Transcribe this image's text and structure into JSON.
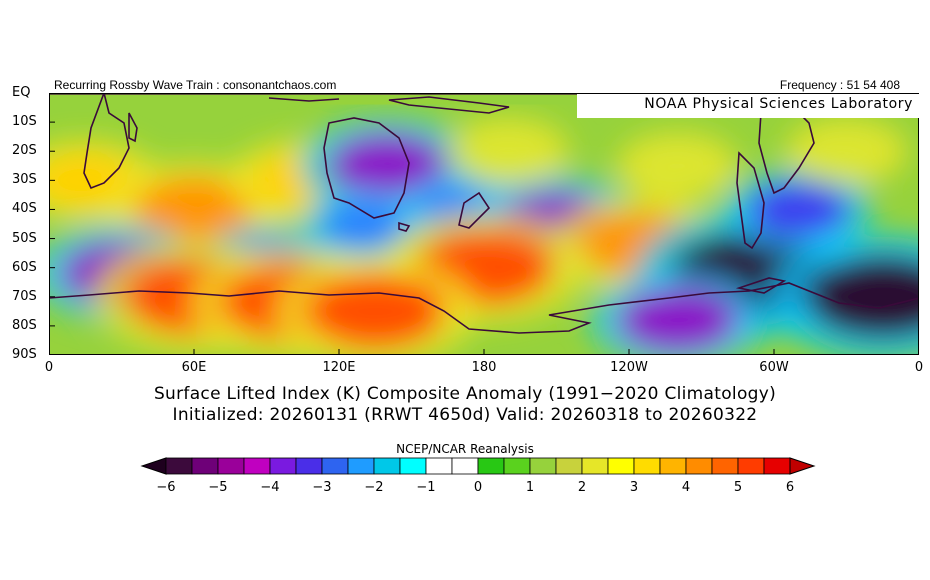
{
  "header": {
    "left": "Recurring Rossby Wave Train : consonantchaos.com",
    "right": "Frequency : 51 54 408",
    "lab": "NOAA Physical Sciences Laboratory"
  },
  "map": {
    "lat_labels": [
      "EQ",
      "10S",
      "20S",
      "30S",
      "40S",
      "50S",
      "60S",
      "70S",
      "80S",
      "90S"
    ],
    "lon_labels": [
      "0",
      "60E",
      "120E",
      "180",
      "120W",
      "60W",
      "0"
    ],
    "lat_range": [
      0,
      -90
    ],
    "lon_range": [
      0,
      360
    ],
    "anomaly_centers": [
      {
        "lon": 15,
        "lat": -30,
        "v": 3
      },
      {
        "lon": 60,
        "lat": -40,
        "v": 4
      },
      {
        "lon": 105,
        "lat": -30,
        "v": 3
      },
      {
        "lon": 140,
        "lat": -25,
        "v": -4
      },
      {
        "lon": 130,
        "lat": -45,
        "v": -2
      },
      {
        "lon": 170,
        "lat": -40,
        "v": -2
      },
      {
        "lon": 210,
        "lat": -45,
        "v": -4
      },
      {
        "lon": 245,
        "lat": -52,
        "v": 4
      },
      {
        "lon": 290,
        "lat": -62,
        "v": -6
      },
      {
        "lon": 310,
        "lat": -40,
        "v": -3
      },
      {
        "lon": 345,
        "lat": -70,
        "v": -6
      },
      {
        "lon": 30,
        "lat": -62,
        "v": -4
      },
      {
        "lon": 90,
        "lat": -60,
        "v": -3
      },
      {
        "lon": 180,
        "lat": -60,
        "v": 5
      },
      {
        "lon": 60,
        "lat": -70,
        "v": 5
      },
      {
        "lon": 100,
        "lat": -72,
        "v": 5
      },
      {
        "lon": 135,
        "lat": -75,
        "v": 5
      },
      {
        "lon": 260,
        "lat": -78,
        "v": -4
      },
      {
        "lon": 330,
        "lat": -20,
        "v": 2
      },
      {
        "lon": 190,
        "lat": -20,
        "v": 2
      },
      {
        "lon": 260,
        "lat": -25,
        "v": 2
      }
    ]
  },
  "titles": {
    "line1": "Surface Lifted Index (K) Composite Anomaly (1991−2020 Climatology)",
    "line2": "Initialized: 20260131 (RRWT 4650d) Valid: 20260318 to 20260322"
  },
  "colorbar": {
    "title": "NCEP/NCAR Reanalysis",
    "labels": [
      "−6",
      "−5",
      "−4",
      "−3",
      "−2",
      "−1",
      "0",
      "1",
      "2",
      "3",
      "4",
      "5",
      "6"
    ],
    "colors": [
      "#3c0a3c",
      "#6e0078",
      "#9a009a",
      "#c000c0",
      "#7a1ae0",
      "#4a2ee8",
      "#2e64f0",
      "#1f9cff",
      "#00c8e8",
      "#00ffff",
      "#ffffff",
      "#ffffff",
      "#28c814",
      "#5ad21e",
      "#96d23c",
      "#c8d23c",
      "#e6e628",
      "#ffff00",
      "#ffdc00",
      "#ffb400",
      "#ff8c00",
      "#ff6400",
      "#ff3c00",
      "#e60000"
    ],
    "under": "#1e001e",
    "over": "#c00000"
  }
}
